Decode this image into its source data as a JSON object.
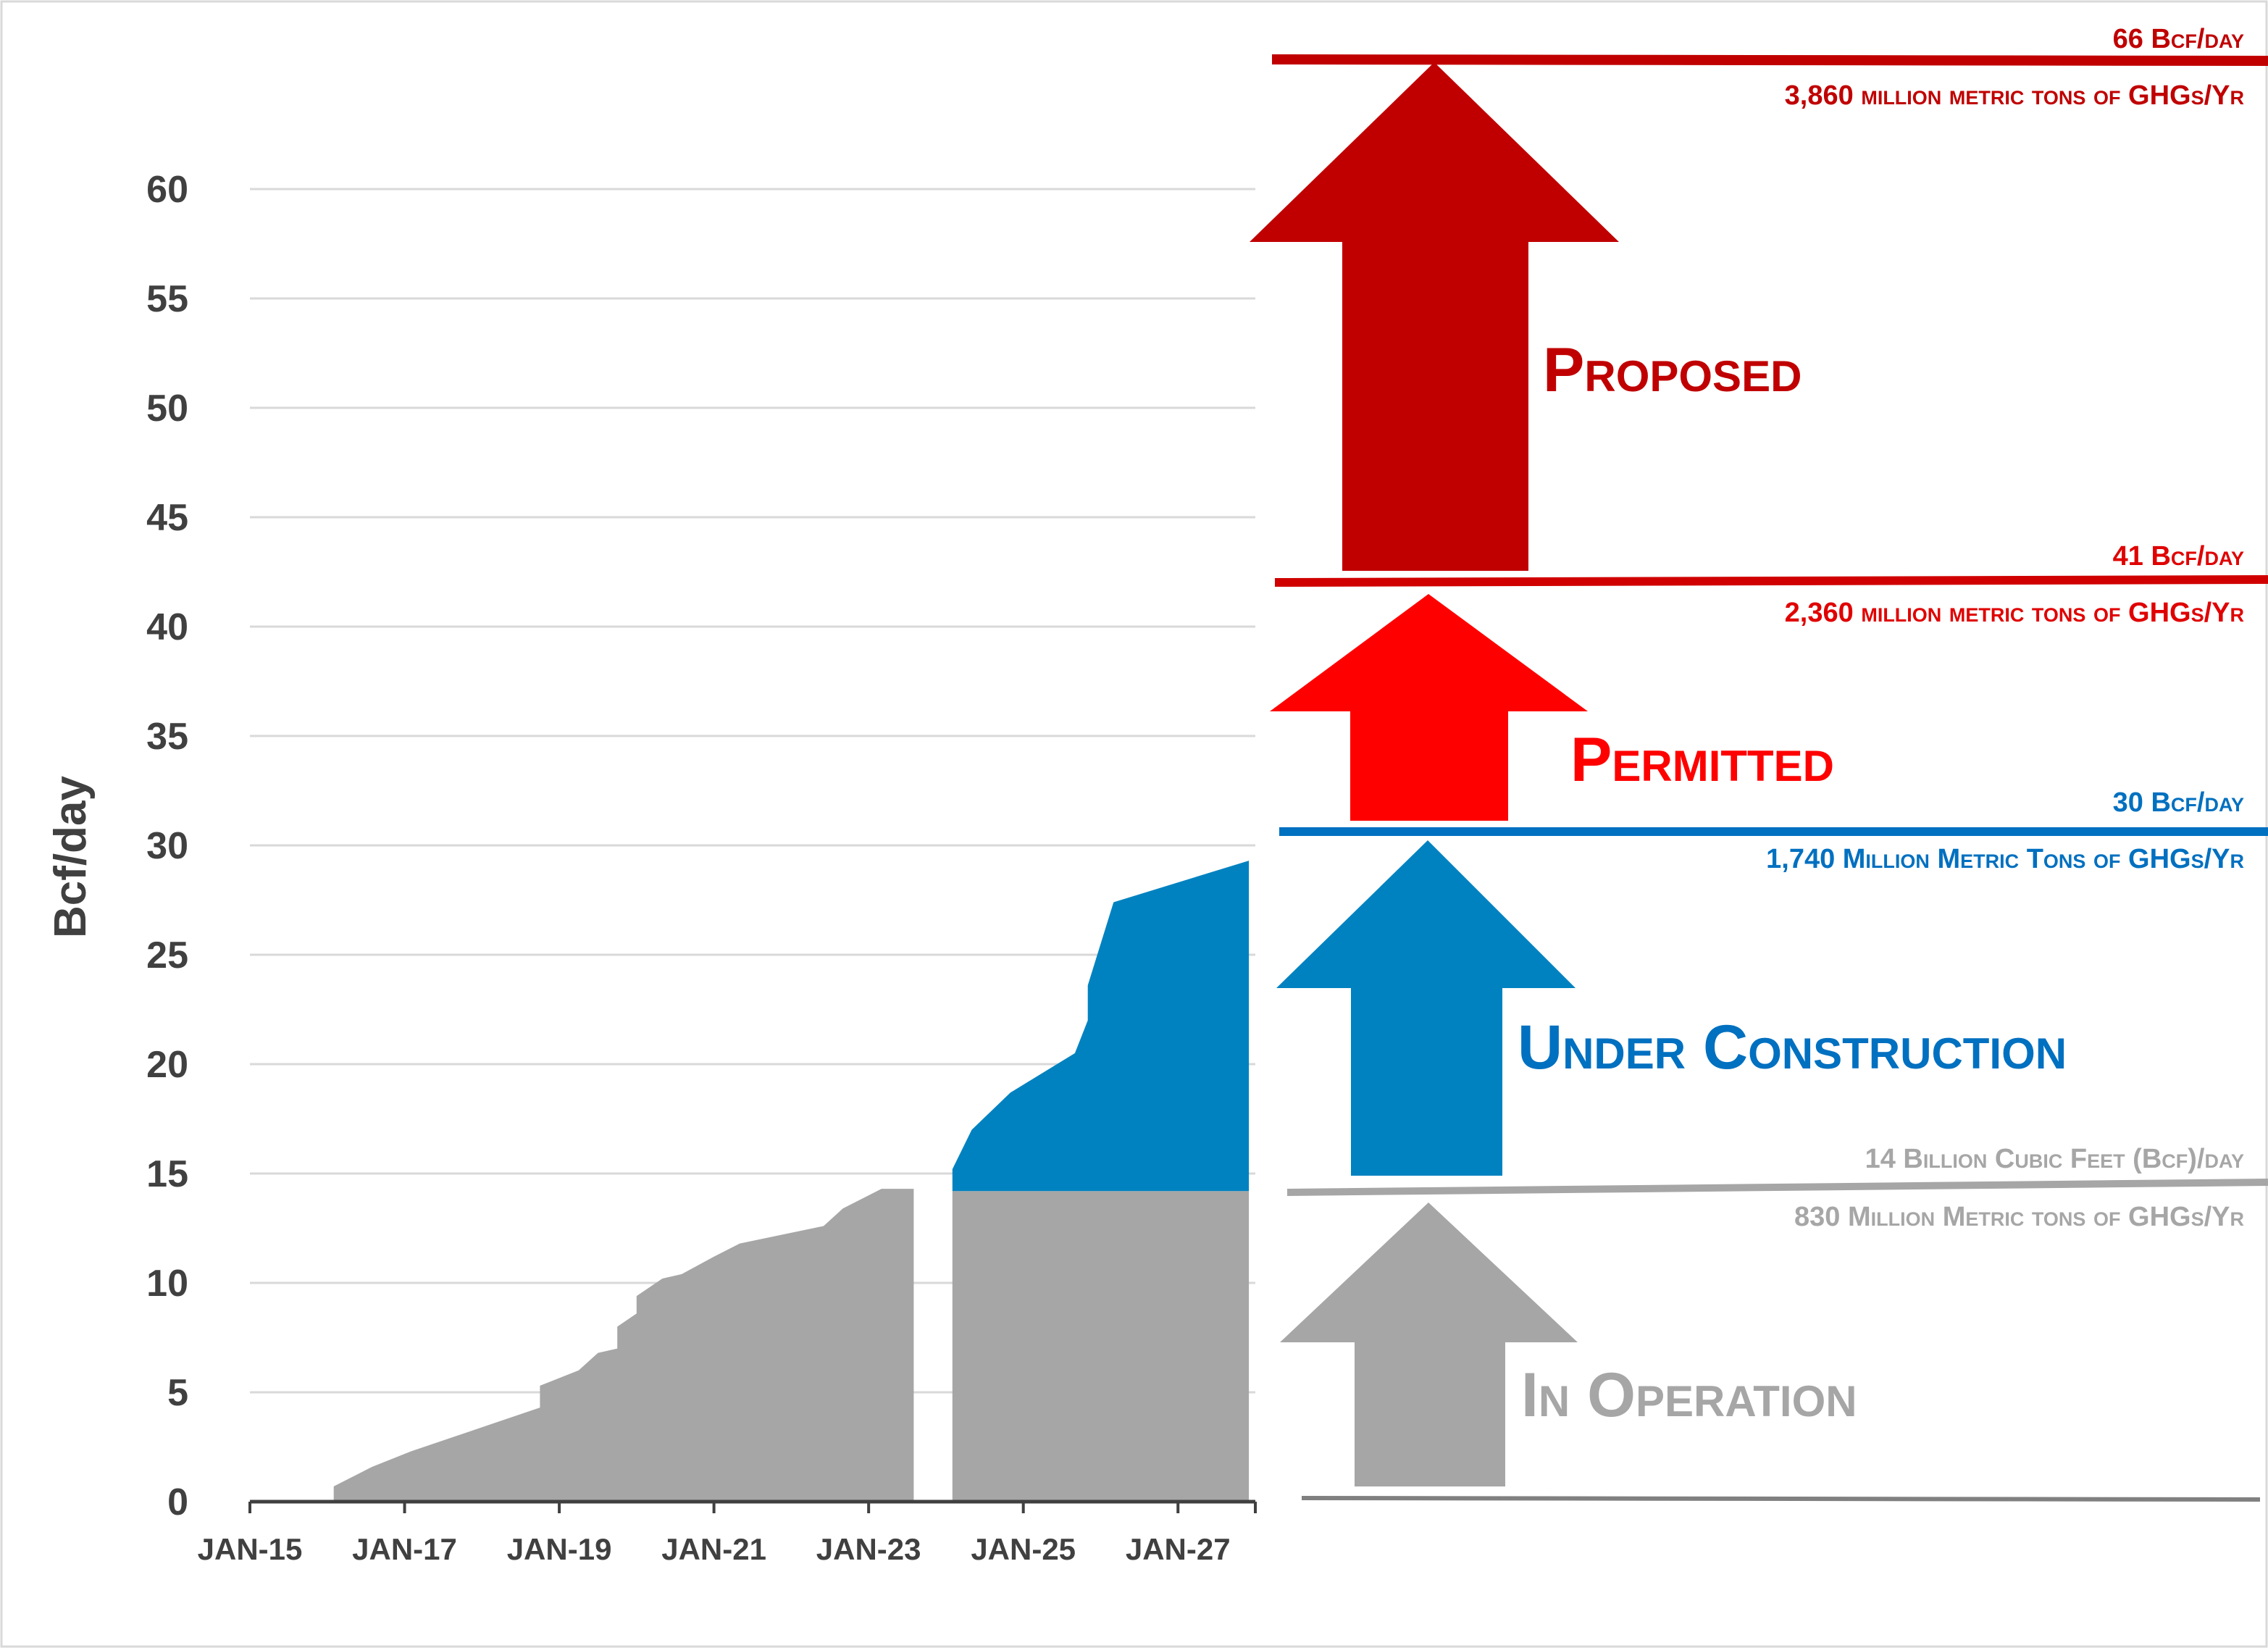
{
  "colors": {
    "operation": "#A6A6A6",
    "construction": "#0082C0",
    "permitted": "#FF0000",
    "proposed": "#C00000",
    "grid": "#D9D9D9",
    "axis": "#404040",
    "construction_line": "#0070C0"
  },
  "chart_data": {
    "type": "area",
    "xlabel": "",
    "ylabel": "Bcf/day",
    "ylim": [
      0,
      65
    ],
    "yticks": [
      0,
      5,
      10,
      15,
      20,
      25,
      30,
      35,
      40,
      45,
      50,
      55,
      60
    ],
    "xlim": [
      "2015-01",
      "2028-01"
    ],
    "xtick_labels": [
      "JAN-15",
      "JAN-17",
      "JAN-19",
      "JAN-21",
      "JAN-23",
      "JAN-25",
      "JAN-27"
    ],
    "xtick_dates": [
      "2015-01",
      "2017-01",
      "2019-01",
      "2021-01",
      "2023-01",
      "2025-01",
      "2027-01"
    ],
    "grid": true,
    "series": [
      {
        "key": "operation_history",
        "values": [
          [
            "2016-02",
            0
          ],
          [
            "2016-02",
            0.7
          ],
          [
            "2016-08",
            1.6
          ],
          [
            "2017-02",
            2.3
          ],
          [
            "2017-09",
            3.0
          ],
          [
            "2018-03",
            3.6
          ],
          [
            "2018-10",
            4.3
          ],
          [
            "2018-10",
            5.3
          ],
          [
            "2019-04",
            6.0
          ],
          [
            "2019-07",
            6.8
          ],
          [
            "2019-10",
            7.0
          ],
          [
            "2019-10",
            8.0
          ],
          [
            "2020-01",
            8.6
          ],
          [
            "2020-01",
            9.4
          ],
          [
            "2020-05",
            10.2
          ],
          [
            "2020-08",
            10.4
          ],
          [
            "2021-01",
            11.2
          ],
          [
            "2021-05",
            11.8
          ],
          [
            "2022-06",
            12.6
          ],
          [
            "2022-09",
            13.4
          ],
          [
            "2023-03",
            14.3
          ],
          [
            "2023-08",
            14.3
          ],
          [
            "2023-08",
            0
          ]
        ]
      },
      {
        "key": "operation_projection",
        "values": [
          [
            "2024-02",
            0
          ],
          [
            "2024-02",
            14.2
          ],
          [
            "2027-12",
            14.2
          ],
          [
            "2027-12",
            0
          ]
        ]
      },
      {
        "key": "under_construction",
        "values": [
          [
            "2024-02",
            14.2
          ],
          [
            "2024-02",
            15.2
          ],
          [
            "2024-05",
            17.0
          ],
          [
            "2024-11",
            18.7
          ],
          [
            "2025-09",
            20.5
          ],
          [
            "2025-11",
            22.0
          ],
          [
            "2025-11",
            23.6
          ],
          [
            "2026-03",
            27.4
          ],
          [
            "2027-12",
            29.3
          ],
          [
            "2027-12",
            14.2
          ]
        ]
      }
    ],
    "stages": [
      {
        "key": "operation",
        "label": "In Operation",
        "bcf_label": "14 Billion Cubic Feet (Bcf)/day",
        "ghg_label": "830 Million Metric tons of GHGs/Yr"
      },
      {
        "key": "construction",
        "label": "Under Construction",
        "bcf_label": "30 Bcf/day",
        "ghg_label": "1,740 Million Metric Tons of GHGs/Yr"
      },
      {
        "key": "permitted",
        "label": "Permitted",
        "bcf_label": "41 Bcf/day",
        "ghg_label": "2,360 million metric tons of GHGs/Yr"
      },
      {
        "key": "proposed",
        "label": "Proposed",
        "bcf_label": "66 Bcf/day",
        "ghg_label": "3,860 million metric tons of GHGs/Yr"
      }
    ]
  }
}
